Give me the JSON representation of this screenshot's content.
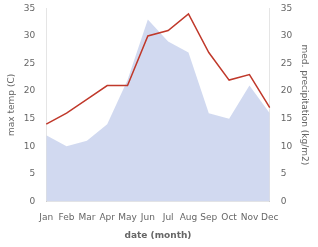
{
  "chart_data": {
    "type": "line",
    "xlabel": "date (month)",
    "ylabel": "max temp (C)",
    "y2label": "med. precipitation (kg/m2)",
    "categories": [
      "Jan",
      "Feb",
      "Mar",
      "Apr",
      "May",
      "Jun",
      "Jul",
      "Aug",
      "Sep",
      "Oct",
      "Nov",
      "Dec"
    ],
    "series": [
      {
        "type": "line",
        "color": "#c0392b",
        "values": [
          14.0,
          16.0,
          18.5,
          21.0,
          21.0,
          30.0,
          31.0,
          34.0,
          27.0,
          22.0,
          23.0,
          17.0
        ]
      },
      {
        "type": "area",
        "color": "#b8c4e8",
        "axis": "y2",
        "values": [
          12.0,
          10.0,
          11.0,
          14.0,
          22.0,
          33.0,
          29.0,
          27.0,
          16.0,
          15.0,
          21.0,
          16.0
        ]
      }
    ],
    "ylim": [
      0,
      35
    ],
    "yticks": [
      0,
      5,
      10,
      15,
      20,
      25,
      30,
      35
    ],
    "y2lim": [
      0,
      35
    ],
    "y2ticks": [
      0,
      5,
      10,
      15,
      20,
      25,
      30,
      35
    ],
    "grid": false
  }
}
